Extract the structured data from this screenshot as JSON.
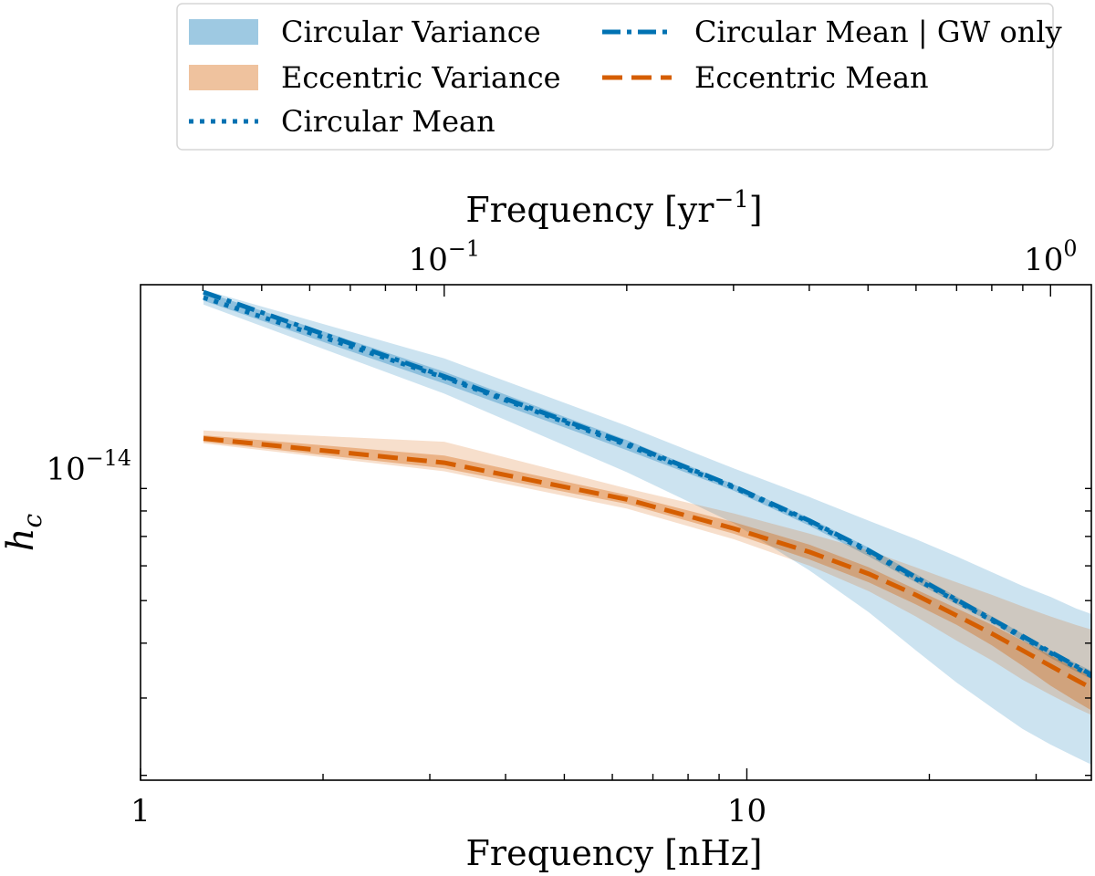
{
  "chart_data": {
    "type": "area",
    "x_scale": "log",
    "y_scale": "log",
    "xlabel": "Frequency [nHz]",
    "ylabel": "h",
    "ylabel_sub": "c",
    "xlim": [
      1.0,
      37.0
    ],
    "ylim": [
      1.95e-15,
      2.62e-14
    ],
    "x_ticks": [
      {
        "value": 1,
        "label": "1"
      },
      {
        "value": 10,
        "label": "10"
      }
    ],
    "y_ticks": [
      {
        "value": 1e-14,
        "base": "10",
        "exp": "−14"
      }
    ],
    "top_axis": {
      "label_main": "Frequency [yr",
      "label_exp": "−1",
      "label_end": "]",
      "ticks": [
        {
          "value": 0.1,
          "base": "10",
          "exp": "−1"
        },
        {
          "value": 1,
          "base": "10",
          "exp": "0"
        }
      ]
    },
    "legend": {
      "position": "top",
      "entries": [
        {
          "key": "circ_var",
          "label": "Circular Variance",
          "style": "patch",
          "color": "#0072b2"
        },
        {
          "key": "ecc_var",
          "label": "Eccentric Variance",
          "style": "patch",
          "color": "#d55e00"
        },
        {
          "key": "circ_mean",
          "label": "Circular Mean",
          "style": "dotted",
          "color": "#0072b2"
        },
        {
          "key": "circ_gw",
          "label": "Circular Mean | GW only",
          "style": "dashdot",
          "color": "#0072b2"
        },
        {
          "key": "ecc_mean",
          "label": "Eccentric Mean",
          "style": "dashed",
          "color": "#d55e00"
        }
      ]
    },
    "x": [
      1.27,
      3.17,
      6.34,
      9.51,
      12.7,
      15.9,
      19.0,
      22.2,
      25.4,
      28.5,
      31.7,
      34.9,
      38.0
    ],
    "bands": [
      {
        "name": "Circular Variance outer",
        "color": "#0072b2",
        "opacity": 0.2,
        "lower": [
          2.36e-14,
          1.48e-14,
          9.8e-15,
          7.5e-15,
          5.85e-15,
          4.7e-15,
          3.85e-15,
          3.25e-15,
          2.85e-15,
          2.55e-15,
          2.35e-15,
          2.2e-15,
          2.08e-15
        ],
        "upper": [
          2.55e-14,
          1.78e-14,
          1.25e-14,
          1e-14,
          8.6e-15,
          7.6e-15,
          6.9e-15,
          6.3e-15,
          5.8e-15,
          5.4e-15,
          5.1e-15,
          4.8e-15,
          4.6e-15
        ]
      },
      {
        "name": "Circular Variance inner",
        "color": "#0072b2",
        "opacity": 0.3,
        "lower": [
          2.41e-14,
          1.56e-14,
          1.1e-14,
          8.9e-15,
          7.4e-15,
          6.3e-15,
          5.5e-15,
          4.9e-15,
          4.45e-15,
          4.05e-15,
          3.7e-15,
          3.45e-15,
          3.25e-15
        ],
        "upper": [
          2.53e-14,
          1.66e-14,
          1.16e-14,
          9.2e-15,
          7.7e-15,
          6.6e-15,
          5.75e-15,
          5.1e-15,
          4.6e-15,
          4.2e-15,
          3.85e-15,
          3.6e-15,
          3.4e-15
        ]
      },
      {
        "name": "Eccentric Variance outer",
        "color": "#d55e00",
        "opacity": 0.2,
        "lower": [
          1.14e-14,
          9.85e-15,
          8.1e-15,
          6.9e-15,
          6e-15,
          5.25e-15,
          4.6e-15,
          4.05e-15,
          3.65e-15,
          3.3e-15,
          3.05e-15,
          2.85e-15,
          2.7e-15
        ],
        "upper": [
          1.22e-14,
          1.15e-14,
          9e-15,
          7.9e-15,
          7.1e-15,
          6.5e-15,
          5.95e-15,
          5.5e-15,
          5.15e-15,
          4.85e-15,
          4.6e-15,
          4.4e-15,
          4.25e-15
        ]
      },
      {
        "name": "Eccentric Variance inner",
        "color": "#d55e00",
        "opacity": 0.35,
        "lower": [
          1.15e-14,
          1e-14,
          8.3e-15,
          7.1e-15,
          6.2e-15,
          5.5e-15,
          4.9e-15,
          4.4e-15,
          3.95e-15,
          3.55e-15,
          3.2e-15,
          2.95e-15,
          2.75e-15
        ],
        "upper": [
          1.19e-14,
          1.07e-14,
          8.7e-15,
          7.55e-15,
          6.7e-15,
          5.95e-15,
          5.3e-15,
          4.8e-15,
          4.4e-15,
          4.05e-15,
          3.75e-15,
          3.5e-15,
          3.3e-15
        ]
      }
    ],
    "series": [
      {
        "name": "Circular Mean",
        "style": "dotted",
        "color": "#0072b2",
        "values": [
          2.45e-14,
          1.61e-14,
          1.13e-14,
          9.05e-15,
          7.55e-15,
          6.45e-15,
          5.6e-15,
          4.98e-15,
          4.5e-15,
          4.12e-15,
          3.8e-15,
          3.52e-15,
          3.3e-15
        ]
      },
      {
        "name": "Circular Mean | GW only",
        "style": "dashdot",
        "color": "#0072b2",
        "values": [
          2.52e-14,
          1.62e-14,
          1.14e-14,
          9.1e-15,
          7.6e-15,
          6.5e-15,
          5.65e-15,
          5.02e-15,
          4.53e-15,
          4.15e-15,
          3.82e-15,
          3.55e-15,
          3.32e-15
        ]
      },
      {
        "name": "Eccentric Mean",
        "style": "dashed",
        "color": "#d55e00",
        "values": [
          1.17e-14,
          1.03e-14,
          8.5e-15,
          7.3e-15,
          6.45e-15,
          5.75e-15,
          5.15e-15,
          4.62e-15,
          4.2e-15,
          3.85e-15,
          3.55e-15,
          3.3e-15,
          3.1e-15
        ]
      }
    ]
  }
}
